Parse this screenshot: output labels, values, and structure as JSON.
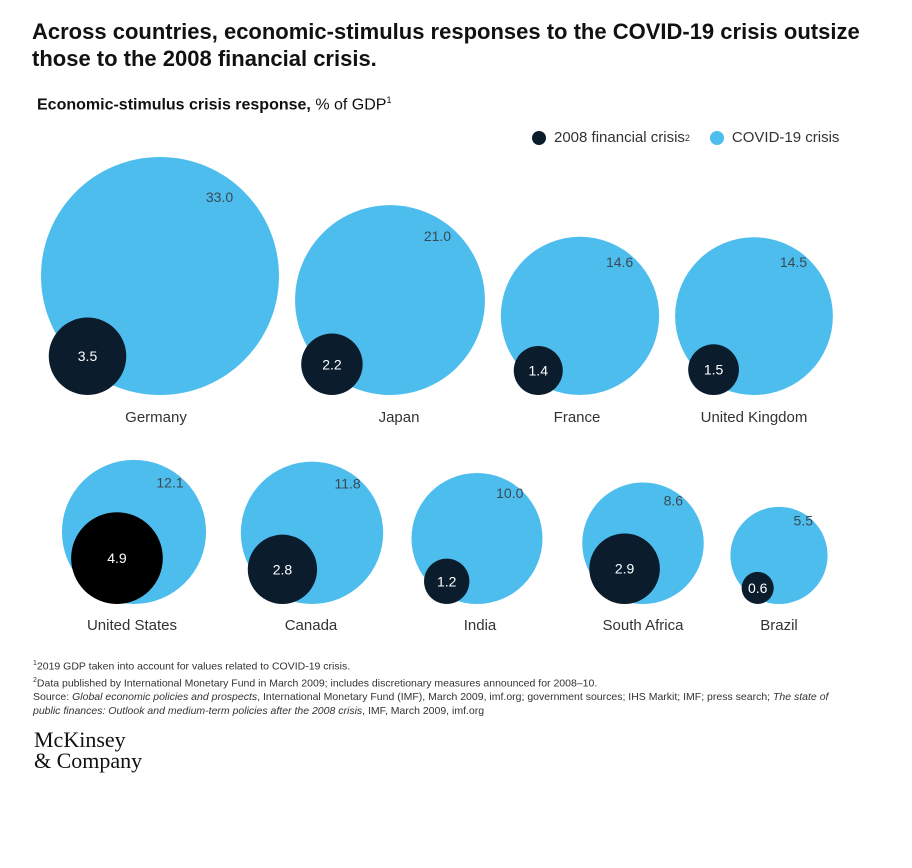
{
  "header": {
    "title": "Across countries, economic-stimulus responses to the COVID-19 crisis outsize those to the 2008 financial crisis.",
    "subtitle_bold": "Economic-stimulus crisis response,",
    "subtitle_rest": " % of GDP",
    "subtitle_sup": "1"
  },
  "legend": {
    "series_2008": "2008 financial crisis",
    "series_2008_sup": "2",
    "series_covid": "COVID-19 crisis"
  },
  "colors": {
    "covid": "#4dbdee",
    "crisis_2008": "#0b1d2d",
    "crisis_2008_highlight": "#000000"
  },
  "chart_data": {
    "type": "bubble",
    "title": "Economic-stimulus crisis response, % of GDP",
    "series": [
      {
        "name": "2008 financial crisis",
        "values": [
          3.5,
          2.2,
          1.4,
          1.5,
          4.9,
          2.8,
          1.2,
          2.9,
          0.6
        ]
      },
      {
        "name": "COVID-19 crisis",
        "values": [
          33.0,
          21.0,
          14.6,
          14.5,
          12.1,
          11.8,
          10.0,
          8.6,
          5.5
        ]
      }
    ],
    "categories": [
      "Germany",
      "Japan",
      "France",
      "United Kingdom",
      "United States",
      "Canada",
      "India",
      "South Africa",
      "Brazil"
    ],
    "value_labels_2008": [
      "3.5",
      "2.2",
      "1.4",
      "1.5",
      "4.9",
      "2.8",
      "1.2",
      "2.9",
      "0.6"
    ],
    "value_labels_covid": [
      "33.0",
      "21.0",
      "14.6",
      "14.5",
      "12.1",
      "11.8",
      "10.0",
      "8.6",
      "5.5"
    ]
  },
  "footnotes": {
    "note1_sup": "1",
    "note1": "2019 GDP taken into account for values related to COVID-19 crisis.",
    "note2_sup": "2",
    "note2": "Data published by International Monetary Fund in March 2009; includes discretionary measures announced for 2008–10.",
    "source_prefix": "Source: ",
    "source_title1": "Global economic policies and prospects",
    "source_mid": ", International Monetary Fund (IMF), March 2009, imf.org; government sources; IHS Markit; IMF; press search; ",
    "source_title2": "The state of public finances: Outlook and medium-term policies after the 2008 crisis",
    "source_end": ", IMF, March 2009, imf.org"
  },
  "logo": {
    "line1": "McKinsey",
    "line2": "& Company"
  }
}
